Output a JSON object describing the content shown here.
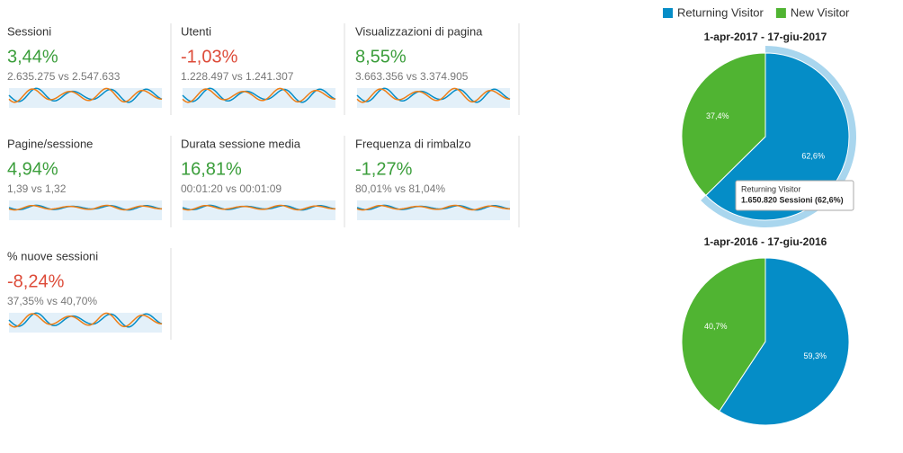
{
  "metrics": [
    {
      "name": "Sessioni",
      "change": "3,44%",
      "color": "#3b9e3b",
      "compare": "2.635.275 vs 2.547.633"
    },
    {
      "name": "Utenti",
      "change": "-1,03%",
      "color": "#dd4b39",
      "compare": "1.228.497 vs 1.241.307"
    },
    {
      "name": "Visualizzazioni di pagina",
      "change": "8,55%",
      "color": "#3b9e3b",
      "compare": "3.663.356 vs 3.374.905"
    },
    {
      "name": "Pagine/sessione",
      "change": "4,94%",
      "color": "#3b9e3b",
      "compare": "1,39 vs 1,32"
    },
    {
      "name": "Durata sessione media",
      "change": "16,81%",
      "color": "#3b9e3b",
      "compare": "00:01:20 vs 00:01:09"
    },
    {
      "name": "Frequenza di rimbalzo",
      "change": "-1,27%",
      "color": "#3b9e3b",
      "compare": "80,01% vs 81,04%"
    },
    {
      "name": "% nuove sessioni",
      "change": "-8,24%",
      "color": "#dd4b39",
      "compare": "37,35% vs 40,70%"
    }
  ],
  "legend": [
    {
      "name": "Returning Visitor",
      "color": "#058dc7"
    },
    {
      "name": "New Visitor",
      "color": "#50b432"
    }
  ],
  "pies": [
    {
      "title": "1-apr-2017 - 17-giu-2017",
      "values": [
        62.6,
        37.4
      ],
      "value_labels": [
        "62,6%",
        "37,4%"
      ]
    },
    {
      "title": "1-apr-2016 - 17-giu-2016",
      "values": [
        59.3,
        40.7
      ],
      "value_labels": [
        "59,3%",
        "40,7%"
      ]
    }
  ],
  "tooltip": {
    "title": "Returning Visitor",
    "text": "1.650.820 Sessioni (62,6%)"
  }
}
